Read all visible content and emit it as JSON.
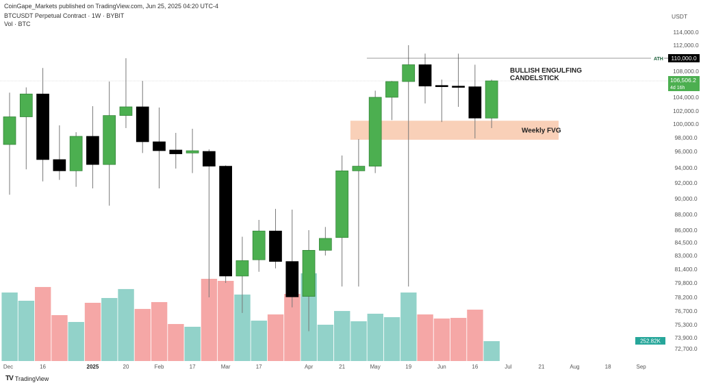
{
  "header": {
    "published": "CoinGape_Markets published on TradingView.com, Jun 25, 2025 04:20 UTC-4",
    "symbol": "BTCUSDT Perpetual Contract · 1W · BYBIT",
    "volume_legend": "Vol · BTC"
  },
  "footer": {
    "brand": "TradingView"
  },
  "colors": {
    "up": "#4caf50",
    "down": "#000000",
    "vol_up": "#92d2c9",
    "vol_down": "#f5a7a6",
    "fvg": "#f9d0b8",
    "last_price": "#4caf50",
    "vol_label": "#26a69a"
  },
  "chart_data": {
    "type": "candlestick",
    "currency": "USDT",
    "y_scale": "log",
    "ylim": [
      72000,
      116000
    ],
    "y_ticks": [
      "114,000.0",
      "112,000.0",
      "110,000.0",
      "108,000.0",
      "104,000.0",
      "102,000.0",
      "100,000.0",
      "98,000.0",
      "96,000.0",
      "94,000.0",
      "92,000.0",
      "90,000.0",
      "88,000.0",
      "86,000.0",
      "84,500.0",
      "83,000.0",
      "81,400.0",
      "79,800.0",
      "78,200.0",
      "76,700.0",
      "75,300.0",
      "73,900.0",
      "72,700.0"
    ],
    "x_ticks": [
      {
        "label": "Dec",
        "week": 0
      },
      {
        "label": "16",
        "week": 2
      },
      {
        "label": "2025",
        "week": 5,
        "bold": true
      },
      {
        "label": "20",
        "week": 7
      },
      {
        "label": "Feb",
        "week": 9
      },
      {
        "label": "17",
        "week": 11
      },
      {
        "label": "Mar",
        "week": 13
      },
      {
        "label": "17",
        "week": 15
      },
      {
        "label": "Apr",
        "week": 18
      },
      {
        "label": "21",
        "week": 20
      },
      {
        "label": "May",
        "week": 22
      },
      {
        "label": "19",
        "week": 24
      },
      {
        "label": "Jun",
        "week": 26
      },
      {
        "label": "16",
        "week": 28
      },
      {
        "label": "Jul",
        "week": 30
      },
      {
        "label": "21",
        "week": 32
      },
      {
        "label": "Aug",
        "week": 34
      },
      {
        "label": "18",
        "week": 36
      },
      {
        "label": "Sep",
        "week": 38
      }
    ],
    "candles": [
      {
        "o": 97000,
        "h": 104700,
        "l": 90500,
        "c": 101100,
        "v": 872
      },
      {
        "o": 101100,
        "h": 105500,
        "l": 93800,
        "c": 104500,
        "v": 767
      },
      {
        "o": 104500,
        "h": 108500,
        "l": 92200,
        "c": 95000,
        "v": 942
      },
      {
        "o": 95000,
        "h": 99800,
        "l": 92400,
        "c": 93600,
        "v": 584
      },
      {
        "o": 93600,
        "h": 98800,
        "l": 91500,
        "c": 98200,
        "v": 497
      },
      {
        "o": 98200,
        "h": 102700,
        "l": 91300,
        "c": 94400,
        "v": 741
      },
      {
        "o": 94400,
        "h": 106400,
        "l": 89100,
        "c": 101300,
        "v": 802
      },
      {
        "o": 101300,
        "h": 110000,
        "l": 99400,
        "c": 102600,
        "v": 916
      },
      {
        "o": 102600,
        "h": 106500,
        "l": 95800,
        "c": 97400,
        "v": 663
      },
      {
        "o": 97400,
        "h": 102500,
        "l": 91300,
        "c": 96100,
        "v": 750
      },
      {
        "o": 96200,
        "h": 98700,
        "l": 93900,
        "c": 95700,
        "v": 471
      },
      {
        "o": 95800,
        "h": 99300,
        "l": 93300,
        "c": 96100,
        "v": 436
      },
      {
        "o": 96000,
        "h": 96300,
        "l": 78200,
        "c": 94200,
        "v": 1046
      },
      {
        "o": 94200,
        "h": 94300,
        "l": 79800,
        "c": 80600,
        "v": 1020
      },
      {
        "o": 80600,
        "h": 85200,
        "l": 76500,
        "c": 82400,
        "v": 846
      },
      {
        "o": 82500,
        "h": 87300,
        "l": 81100,
        "c": 85900,
        "v": 514
      },
      {
        "o": 85900,
        "h": 88700,
        "l": 81500,
        "c": 82300,
        "v": 593
      },
      {
        "o": 82300,
        "h": 88600,
        "l": 77100,
        "c": 78250,
        "v": 854
      },
      {
        "o": 78300,
        "h": 86000,
        "l": 74600,
        "c": 83600,
        "v": 1116
      },
      {
        "o": 83600,
        "h": 86400,
        "l": 83000,
        "c": 85000,
        "v": 462
      },
      {
        "o": 85100,
        "h": 95500,
        "l": 79400,
        "c": 93600,
        "v": 637
      },
      {
        "o": 93600,
        "h": 97800,
        "l": 79400,
        "c": 94200,
        "v": 506
      },
      {
        "o": 94200,
        "h": 105000,
        "l": 93300,
        "c": 104000,
        "v": 602
      },
      {
        "o": 104000,
        "h": 106500,
        "l": 100600,
        "c": 106400,
        "v": 558
      },
      {
        "o": 106400,
        "h": 112000,
        "l": 79400,
        "c": 109000,
        "v": 872
      },
      {
        "o": 109000,
        "h": 110700,
        "l": 103100,
        "c": 105700,
        "v": 593
      },
      {
        "o": 105800,
        "h": 106700,
        "l": 100300,
        "c": 105600,
        "v": 541
      },
      {
        "o": 105700,
        "h": 110700,
        "l": 102600,
        "c": 105500,
        "v": 549
      },
      {
        "o": 105600,
        "h": 109000,
        "l": 97900,
        "c": 100900,
        "v": 654
      },
      {
        "o": 100900,
        "h": 106700,
        "l": 99400,
        "c": 106506.2,
        "v": 252.82
      }
    ],
    "volume_unit": "K",
    "ath": {
      "label": "ATH",
      "price": 110000,
      "price_label": "110,000.0",
      "from_week": 21
    },
    "last_price": {
      "price": 106506.2,
      "label": "106,506.2",
      "countdown": "4d 16h"
    },
    "last_volume_label": "252.82K",
    "fvg": {
      "label": "Weekly FVG",
      "from_week": 21,
      "to_week": 33,
      "top": 100500,
      "bottom": 97700
    },
    "annotation": {
      "line1": "BULLISH ENGULFING",
      "line2": "CANDELSTICK"
    }
  }
}
